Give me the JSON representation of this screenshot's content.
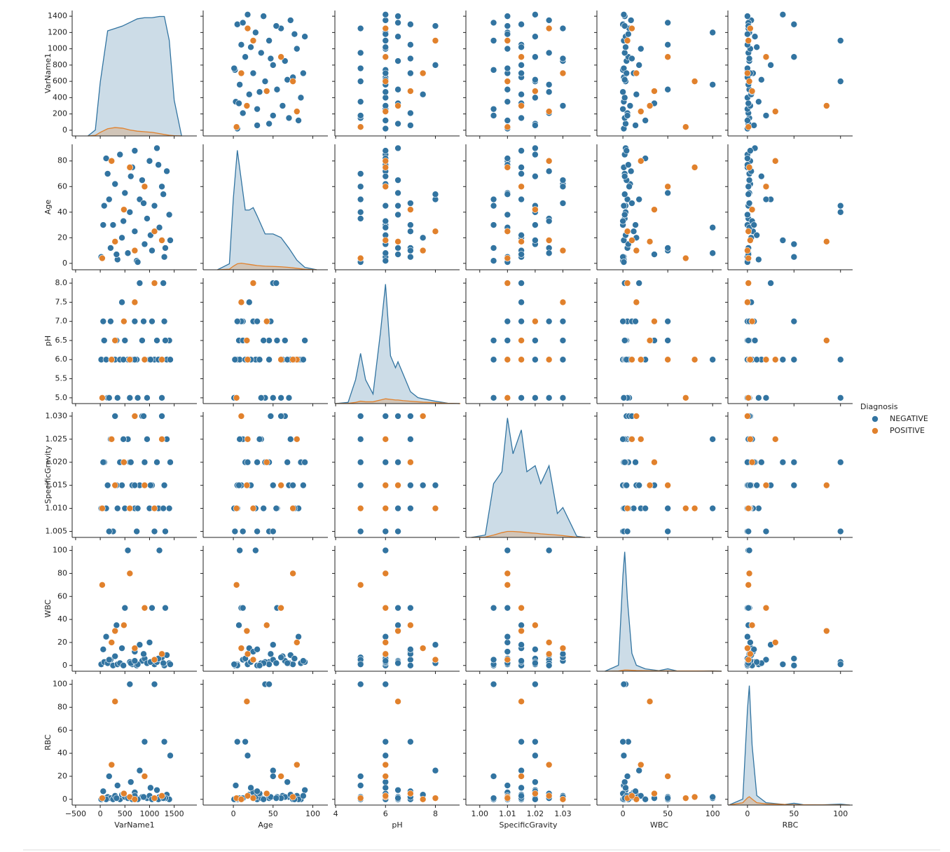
{
  "chart_data": {
    "type": "pairplot",
    "legend_title": "Diagnosis",
    "legend": "right",
    "variables": [
      {
        "name": "VarName1",
        "xlim": [
          -570,
          1960
        ],
        "ylim": [
          -70,
          1470
        ],
        "xticks": [
          {
            "value": -500,
            "label": "−500"
          },
          0,
          500,
          1000,
          1500
        ],
        "yticks": [
          0,
          200,
          400,
          600,
          800,
          1000,
          1200,
          1400
        ]
      },
      {
        "name": "Age",
        "xlim": [
          -38,
          119
        ],
        "ylim": [
          -5,
          93
        ],
        "xticks": [
          0,
          50,
          100
        ],
        "yticks": [
          0,
          20,
          40,
          60,
          80
        ]
      },
      {
        "name": "pH",
        "xlim": [
          3.97,
          8.97
        ],
        "ylim": [
          4.85,
          8.13
        ],
        "xticks": [
          4,
          6,
          8
        ],
        "yticks": [
          {
            "value": 5,
            "label": "5.0"
          },
          5.5,
          {
            "value": 6,
            "label": "6.0"
          },
          6.5,
          {
            "value": 7,
            "label": "7.0"
          },
          7.5,
          {
            "value": 8,
            "label": "8.0"
          }
        ]
      },
      {
        "name": "SpecificGravity",
        "xlim": [
          0.995,
          1.04
        ],
        "ylim": [
          1.0037,
          1.0309
        ],
        "xticks": [
          {
            "value": 1,
            "label": "1.00"
          },
          1.01,
          1.02,
          1.03
        ],
        "yticks": [
          1.005,
          {
            "value": 1.01,
            "label": "1.010"
          },
          1.015,
          {
            "value": 1.02,
            "label": "1.020"
          },
          1.025,
          {
            "value": 1.03,
            "label": "1.030"
          }
        ]
      },
      {
        "name": "WBC",
        "xlim": [
          -29,
          110
        ],
        "ylim": [
          -5,
          104
        ],
        "xticks": [
          0,
          50,
          100
        ],
        "yticks": [
          0,
          20,
          40,
          60,
          80,
          100
        ]
      },
      {
        "name": "RBC",
        "xlim": [
          -21,
          113
        ],
        "ylim": [
          -5,
          104
        ],
        "xticks": [
          0,
          50,
          100
        ],
        "yticks": [
          0,
          20,
          40,
          60,
          80,
          100
        ]
      }
    ],
    "series": [
      {
        "name": "NEGATIVE",
        "color": "#3274a1",
        "rows": [
          [
            20,
            5,
            6,
            1.01,
            1,
            0
          ],
          [
            80,
            45,
            6.5,
            1.02,
            3,
            1
          ],
          [
            150,
            70,
            5,
            1.015,
            2,
            2
          ],
          [
            210,
            12,
            7,
            1.025,
            5,
            1
          ],
          [
            260,
            30,
            6,
            1.005,
            0,
            0
          ],
          [
            300,
            62,
            6,
            1.03,
            8,
            3
          ],
          [
            350,
            3,
            5,
            1.01,
            1,
            12
          ],
          [
            400,
            85,
            6,
            1.02,
            2,
            0
          ],
          [
            440,
            20,
            7.5,
            1.015,
            15,
            4
          ],
          [
            500,
            55,
            6.5,
            1.01,
            50,
            2
          ],
          [
            560,
            8,
            6,
            1.025,
            100,
            1
          ],
          [
            600,
            40,
            5,
            1.02,
            3,
            100
          ],
          [
            650,
            75,
            6,
            1.015,
            1,
            0
          ],
          [
            700,
            25,
            7,
            1.01,
            12,
            6
          ],
          [
            740,
            2,
            6,
            1.005,
            0,
            0
          ],
          [
            800,
            50,
            8,
            1.015,
            18,
            25
          ],
          [
            850,
            65,
            6.5,
            1.03,
            4,
            2
          ],
          [
            900,
            15,
            6,
            1.02,
            6,
            50
          ],
          [
            950,
            35,
            5,
            1.025,
            2,
            1
          ],
          [
            1000,
            80,
            6,
            1.01,
            20,
            3
          ],
          [
            1050,
            10,
            7,
            1.015,
            50,
            0
          ],
          [
            1100,
            45,
            6,
            1.005,
            1,
            100
          ],
          [
            1150,
            90,
            6.5,
            1.02,
            3,
            8
          ],
          [
            1200,
            28,
            6,
            1.01,
            100,
            2
          ],
          [
            1250,
            60,
            5,
            1.03,
            7,
            1
          ],
          [
            1300,
            5,
            7,
            1.015,
            0,
            50
          ],
          [
            1350,
            72,
            6,
            1.025,
            9,
            4
          ],
          [
            1400,
            38,
            6.5,
            1.01,
            2,
            0
          ],
          [
            1420,
            18,
            6,
            1.02,
            1,
            38
          ],
          [
            120,
            82,
            6,
            1.01,
            25,
            0
          ],
          [
            180,
            50,
            5,
            1.005,
            5,
            20
          ],
          [
            330,
            7,
            6.5,
            1.015,
            35,
            1
          ],
          [
            470,
            33,
            6,
            1.025,
            0,
            5
          ],
          [
            620,
            68,
            6,
            1.02,
            2,
            15
          ],
          [
            760,
            1,
            5,
            1.01,
            1,
            0
          ],
          [
            880,
            47,
            7,
            1.03,
            10,
            2
          ],
          [
            1020,
            22,
            6,
            1.015,
            3,
            10
          ],
          [
            1180,
            77,
            6,
            1.01,
            6,
            0
          ],
          [
            1320,
            12,
            6.5,
            1.005,
            50,
            1
          ],
          [
            60,
            30,
            7,
            1.02,
            14,
            7
          ],
          [
            700,
            88,
            6,
            1.015,
            4,
            3
          ],
          [
            1280,
            54,
            8,
            1.01,
            2,
            1
          ]
        ]
      },
      {
        "name": "POSITIVE",
        "color": "#e1812c",
        "rows": [
          [
            40,
            4,
            5,
            1.01,
            70,
            1
          ],
          [
            230,
            80,
            6,
            1.025,
            20,
            30
          ],
          [
            300,
            17,
            6.5,
            1.015,
            30,
            85
          ],
          [
            480,
            42,
            7,
            1.02,
            35,
            5
          ],
          [
            600,
            75,
            6,
            1.01,
            80,
            2
          ],
          [
            700,
            10,
            7.5,
            1.03,
            15,
            0
          ],
          [
            900,
            60,
            6,
            1.015,
            50,
            20
          ],
          [
            1100,
            25,
            8,
            1.01,
            5,
            1
          ],
          [
            1250,
            18,
            6,
            1.025,
            10,
            3
          ]
        ]
      }
    ],
    "diag_ylim": [
      0,
      1.05
    ],
    "diagonal": [
      {
        "x": [
          -250,
          -100,
          0,
          150,
          300,
          450,
          600,
          750,
          900,
          1050,
          1200,
          1300,
          1400,
          1500,
          1650
        ],
        "series": [
          {
            "values": [
              0,
              0.05,
              0.45,
              0.88,
              0.9,
              0.92,
              0.95,
              0.98,
              0.99,
              0.99,
              1,
              1,
              0.8,
              0.3,
              0
            ]
          },
          {
            "values": [
              0,
              0.005,
              0.03,
              0.06,
              0.07,
              0.065,
              0.05,
              0.04,
              0.035,
              0.03,
              0.02,
              0.012,
              0.006,
              0.002,
              0
            ]
          }
        ]
      },
      {
        "x": [
          -20,
          -5,
          0,
          5,
          10,
          15,
          20,
          25,
          30,
          40,
          50,
          60,
          70,
          80,
          90,
          105
        ],
        "series": [
          {
            "values": [
              0,
              0.05,
              0.6,
              1,
              0.75,
              0.5,
              0.5,
              0.52,
              0.45,
              0.3,
              0.3,
              0.27,
              0.18,
              0.08,
              0.02,
              0
            ]
          },
          {
            "values": [
              0,
              0.005,
              0.03,
              0.05,
              0.055,
              0.05,
              0.045,
              0.04,
              0.035,
              0.03,
              0.028,
              0.025,
              0.02,
              0.012,
              0.004,
              0
            ]
          }
        ]
      },
      {
        "x": [
          4,
          4.5,
          4.8,
          5,
          5.2,
          5.5,
          5.8,
          6,
          6.2,
          6.4,
          6.5,
          6.7,
          7,
          7.3,
          7.5,
          8,
          8.5,
          9
        ],
        "series": [
          {
            "values": [
              0,
              0.01,
              0.2,
              0.42,
              0.2,
              0.08,
              0.6,
              1,
              0.4,
              0.3,
              0.35,
              0.25,
              0.1,
              0.05,
              0.04,
              0.02,
              0.003,
              0
            ]
          },
          {
            "values": [
              0,
              0.002,
              0.01,
              0.02,
              0.015,
              0.015,
              0.03,
              0.04,
              0.035,
              0.03,
              0.03,
              0.025,
              0.02,
              0.015,
              0.012,
              0.008,
              0.002,
              0
            ]
          }
        ]
      },
      {
        "x": [
          0.997,
          1.002,
          1.005,
          1.008,
          1.01,
          1.012,
          1.015,
          1.017,
          1.02,
          1.022,
          1.025,
          1.028,
          1.03,
          1.035,
          1.038
        ],
        "series": [
          {
            "values": [
              0,
              0.02,
              0.45,
              0.55,
              1,
              0.7,
              0.9,
              0.55,
              0.6,
              0.45,
              0.6,
              0.2,
              0.25,
              0.01,
              0
            ]
          },
          {
            "values": [
              0,
              0.003,
              0.02,
              0.04,
              0.05,
              0.05,
              0.045,
              0.04,
              0.035,
              0.03,
              0.025,
              0.02,
              0.015,
              0.002,
              0
            ]
          }
        ]
      },
      {
        "x": [
          -20,
          -5,
          0,
          2,
          5,
          10,
          15,
          25,
          40,
          50,
          60,
          80,
          100,
          110
        ],
        "series": [
          {
            "values": [
              0,
              0.05,
              0.8,
              1,
              0.6,
              0.15,
              0.05,
              0.02,
              0.005,
              0.02,
              0.003,
              0.001,
              0.003,
              0
            ]
          },
          {
            "values": [
              0,
              0.002,
              0.008,
              0.01,
              0.01,
              0.008,
              0.006,
              0.004,
              0.003,
              0.003,
              0.002,
              0.002,
              0.001,
              0
            ]
          }
        ]
      },
      {
        "x": [
          -20,
          -5,
          0,
          2,
          5,
          10,
          20,
          40,
          50,
          60,
          80,
          100,
          110
        ],
        "series": [
          {
            "values": [
              0,
              0.05,
              0.8,
              1,
              0.5,
              0.08,
              0.02,
              0.005,
              0.015,
              0.003,
              0.001,
              0.008,
              0
            ]
          },
          {
            "values": [
              0,
              0.02,
              0.06,
              0.07,
              0.05,
              0.02,
              0.01,
              0.005,
              0.003,
              0.002,
              0.001,
              0.001,
              0
            ]
          }
        ]
      }
    ]
  }
}
